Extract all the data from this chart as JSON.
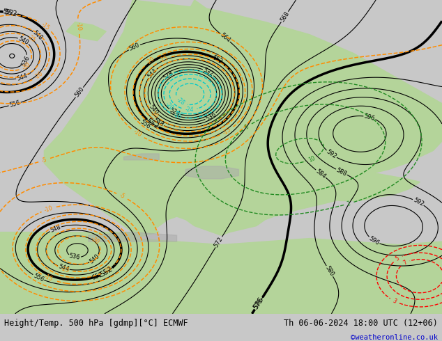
{
  "title_left": "Height/Temp. 500 hPa [gdmp][°C] ECMWF",
  "title_right": "Th 06-06-2024 18:00 UTC (12+06)",
  "credit": "©weatheronline.co.uk",
  "bg_color": "#c8c8c8",
  "land_color": "#b4d49a",
  "sea_color": "#c8c8c8",
  "contour_color_z500": "#000000",
  "temp_color_neg": "#ff8c00",
  "temp_color_green": "#228B22",
  "temp_color_cyan": "#00cccc",
  "temp_color_red": "#ff0000",
  "font_size_title": 9,
  "font_size_credit": 8
}
